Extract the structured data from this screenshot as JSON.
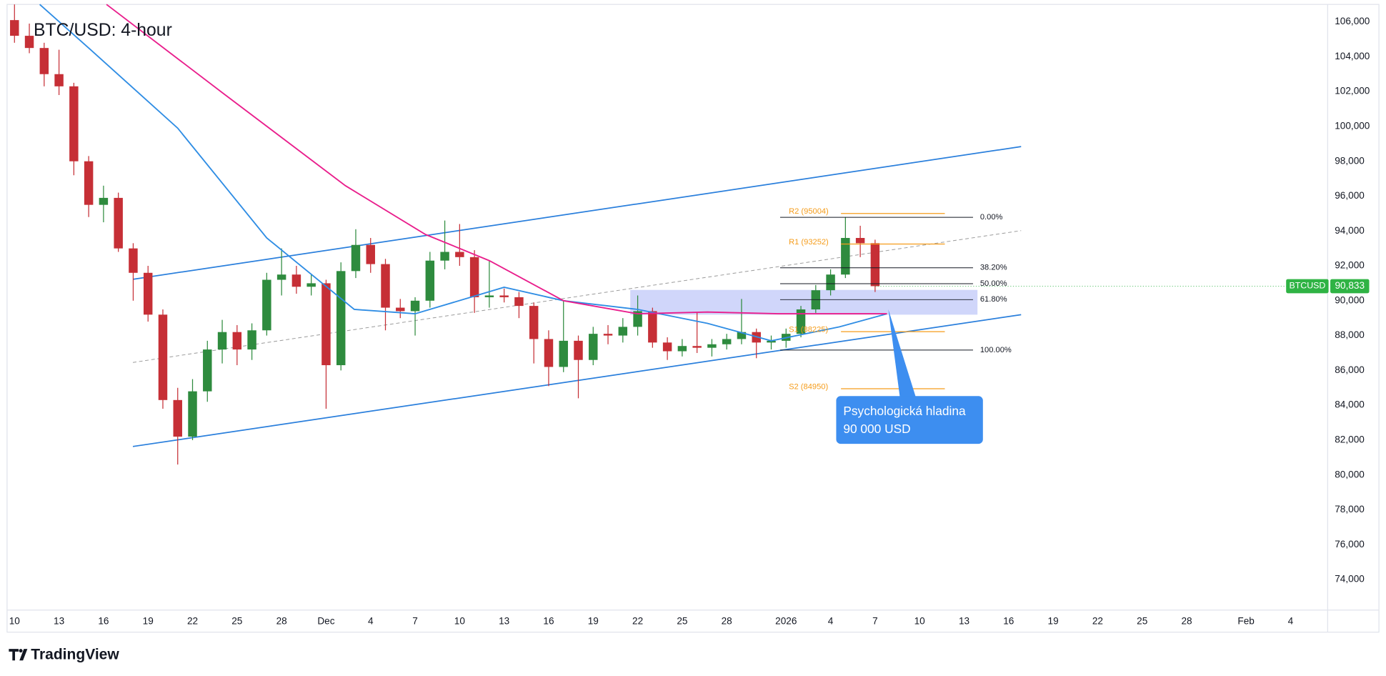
{
  "chart_data": {
    "type": "candlestick",
    "title": "BTC/USD: 4-hour",
    "x": [
      0,
      1,
      2,
      3,
      4,
      5,
      6,
      7,
      8,
      9,
      10,
      11,
      12,
      13,
      14,
      15,
      16,
      17,
      18,
      19,
      20,
      21,
      22,
      23,
      24,
      25,
      26,
      27,
      28,
      29,
      30,
      31,
      32,
      33,
      34,
      35,
      36,
      37,
      38,
      39,
      40,
      41,
      42,
      43,
      44,
      45,
      46,
      47,
      48,
      49,
      50,
      51,
      52,
      53,
      54,
      55,
      56,
      57,
      58
    ],
    "open": [
      106100,
      105200,
      104500,
      103000,
      102300,
      98000,
      95500,
      95900,
      93000,
      91600,
      89200,
      84300,
      82200,
      84800,
      87200,
      88200,
      87200,
      88300,
      91200,
      91500,
      90800,
      91000,
      86300,
      91700,
      93200,
      92100,
      89600,
      89400,
      90000,
      92300,
      92800,
      92500,
      90200,
      90300,
      90200,
      89700,
      87800,
      86200,
      87700,
      86600,
      88100,
      88000,
      88500,
      89400,
      87600,
      87100,
      87400,
      87300,
      87500,
      87800,
      88200,
      87600,
      87700,
      88100,
      89500,
      90600,
      91500,
      93600,
      93300
    ],
    "high": [
      107000,
      105900,
      104800,
      104400,
      102500,
      98300,
      96600,
      96200,
      93300,
      92000,
      89500,
      85000,
      85500,
      87700,
      88900,
      88600,
      88700,
      91600,
      93000,
      92000,
      91500,
      91200,
      92200,
      94100,
      93600,
      92400,
      90100,
      90200,
      92800,
      94600,
      94400,
      92900,
      92300,
      90700,
      90500,
      89900,
      88300,
      90000,
      88000,
      88500,
      88600,
      89000,
      90300,
      89600,
      87900,
      87800,
      89300,
      87800,
      88100,
      90100,
      88400,
      88000,
      88400,
      89700,
      90900,
      91800,
      94800,
      94300,
      93500
    ],
    "low": [
      104800,
      104200,
      102300,
      101800,
      97200,
      94800,
      94500,
      92800,
      90000,
      88800,
      83800,
      80600,
      82000,
      84200,
      86400,
      86300,
      86600,
      88000,
      90300,
      90400,
      90300,
      83800,
      86000,
      91300,
      91600,
      88300,
      89000,
      88000,
      89600,
      91800,
      92000,
      89300,
      89600,
      89900,
      89000,
      86400,
      85100,
      85900,
      84400,
      86300,
      87500,
      87600,
      88000,
      87300,
      86600,
      86800,
      87000,
      86800,
      87200,
      87500,
      86700,
      87200,
      87300,
      87900,
      89300,
      90300,
      91300,
      92500,
      90500
    ],
    "close": [
      105200,
      104500,
      103000,
      102300,
      98000,
      95500,
      95900,
      93000,
      91600,
      89200,
      84300,
      82200,
      84800,
      87200,
      88200,
      87200,
      88300,
      91200,
      91500,
      90800,
      91000,
      86300,
      91700,
      93200,
      92100,
      89600,
      89400,
      90000,
      92300,
      92800,
      92500,
      90200,
      90300,
      90200,
      89700,
      87800,
      86200,
      87700,
      86600,
      88100,
      88000,
      88500,
      89400,
      87600,
      87100,
      87400,
      87300,
      87500,
      87800,
      88200,
      87600,
      87700,
      88100,
      89500,
      90600,
      91500,
      93600,
      93300,
      90833
    ],
    "up_color": "#2e8b3e",
    "down_color": "#c62f36",
    "xlim": [
      -0.5,
      88.5
    ],
    "xticks": [
      {
        "value": 0,
        "label": "10"
      },
      {
        "value": 3,
        "label": "13"
      },
      {
        "value": 6,
        "label": "16"
      },
      {
        "value": 9,
        "label": "19"
      },
      {
        "value": 12,
        "label": "22"
      },
      {
        "value": 15,
        "label": "25"
      },
      {
        "value": 18,
        "label": "28"
      },
      {
        "value": 21,
        "label": "Dec"
      },
      {
        "value": 24,
        "label": "4"
      },
      {
        "value": 27,
        "label": "7"
      },
      {
        "value": 30,
        "label": "10"
      },
      {
        "value": 33,
        "label": "13"
      },
      {
        "value": 36,
        "label": "16"
      },
      {
        "value": 39,
        "label": "19"
      },
      {
        "value": 42,
        "label": "22"
      },
      {
        "value": 45,
        "label": "25"
      },
      {
        "value": 48,
        "label": "28"
      },
      {
        "value": 52,
        "label": "2026"
      },
      {
        "value": 55,
        "label": "4"
      },
      {
        "value": 58,
        "label": "7"
      },
      {
        "value": 61,
        "label": "10"
      },
      {
        "value": 64,
        "label": "13"
      },
      {
        "value": 67,
        "label": "16"
      },
      {
        "value": 70,
        "label": "19"
      },
      {
        "value": 73,
        "label": "22"
      },
      {
        "value": 76,
        "label": "25"
      },
      {
        "value": 79,
        "label": "28"
      },
      {
        "value": 83,
        "label": "Feb"
      },
      {
        "value": 86,
        "label": "4"
      }
    ],
    "ylim": [
      72250,
      107000
    ],
    "yticks": [
      {
        "value": 74000,
        "label": "74,000"
      },
      {
        "value": 76000,
        "label": "76,000"
      },
      {
        "value": 78000,
        "label": "78,000"
      },
      {
        "value": 80000,
        "label": "80,000"
      },
      {
        "value": 82000,
        "label": "82,000"
      },
      {
        "value": 84000,
        "label": "84,000"
      },
      {
        "value": 86000,
        "label": "86,000"
      },
      {
        "value": 88000,
        "label": "88,000"
      },
      {
        "value": 90000,
        "label": "90,000"
      },
      {
        "value": 92000,
        "label": "92,000"
      },
      {
        "value": 94000,
        "label": "94,000"
      },
      {
        "value": 96000,
        "label": "96,000"
      },
      {
        "value": 98000,
        "label": "98,000"
      },
      {
        "value": 100000,
        "label": "100,000"
      },
      {
        "value": 102000,
        "label": "102,000"
      },
      {
        "value": 104000,
        "label": "104,000"
      },
      {
        "value": 106000,
        "label": "106,000"
      }
    ],
    "grid": false,
    "moving_averages": [
      {
        "color": "#2f8de4",
        "x": [
          1.7,
          5,
          11,
          17,
          22.9,
          27,
          33,
          37,
          42,
          46.7,
          51,
          55.6,
          58.8
        ],
        "values": [
          107000,
          104500,
          99900,
          93600,
          89500,
          89250,
          90770,
          90000,
          89500,
          88700,
          87700,
          88500,
          89250
        ]
      },
      {
        "color": "#e91e8c",
        "x": [
          6.2,
          14,
          22.3,
          27.7,
          32,
          37,
          42,
          46.7,
          51.5,
          58.8
        ],
        "values": [
          107000,
          101940,
          96600,
          93800,
          92300,
          90000,
          89250,
          89350,
          89250,
          89250
        ]
      }
    ],
    "trend_lines": [
      {
        "color": "#2a7fdc",
        "dashed": false,
        "x": [
          7.98,
          67.84
        ],
        "values": [
          91228,
          98843
        ]
      },
      {
        "color": "#2a7fdc",
        "dashed": false,
        "x": [
          7.98,
          67.84
        ],
        "values": [
          81635,
          89198
        ]
      },
      {
        "color": "#9a9a9a",
        "dashed": true,
        "x": [
          7.98,
          67.84
        ],
        "values": [
          86457,
          94020
        ]
      }
    ],
    "zone": {
      "color": "#a9b4f5",
      "x": [
        41.5,
        64.9
      ],
      "values": [
        89198,
        90619
      ]
    },
    "fib_x": [
      51.6,
      64.6
    ],
    "fib_levels": [
      {
        "label": "0.00%",
        "value": 94782
      },
      {
        "label": "38.20%",
        "value": 91888
      },
      {
        "label": "50.00%",
        "value": 90975
      },
      {
        "label": "61.80%",
        "value": 90061
      },
      {
        "label": "100.00%",
        "value": 87168
      }
    ],
    "pivot_color": "#f59c1a",
    "pivot_x": [
      55.7,
      62.7
    ],
    "pivots": [
      {
        "label": "R2 (95004)",
        "value": 95004
      },
      {
        "label": "R1 (93252)",
        "value": 93252
      },
      {
        "label": "S1 (88225)",
        "value": 88225
      },
      {
        "label": "S2 (84950)",
        "value": 84950
      }
    ],
    "annotation": [
      "Psychologická hladina",
      "90 000 USD"
    ],
    "last_price": {
      "name": "BTCUSD",
      "value": 90833,
      "label": "90,833",
      "color": "#2fb344"
    },
    "brand": "TradingView"
  }
}
